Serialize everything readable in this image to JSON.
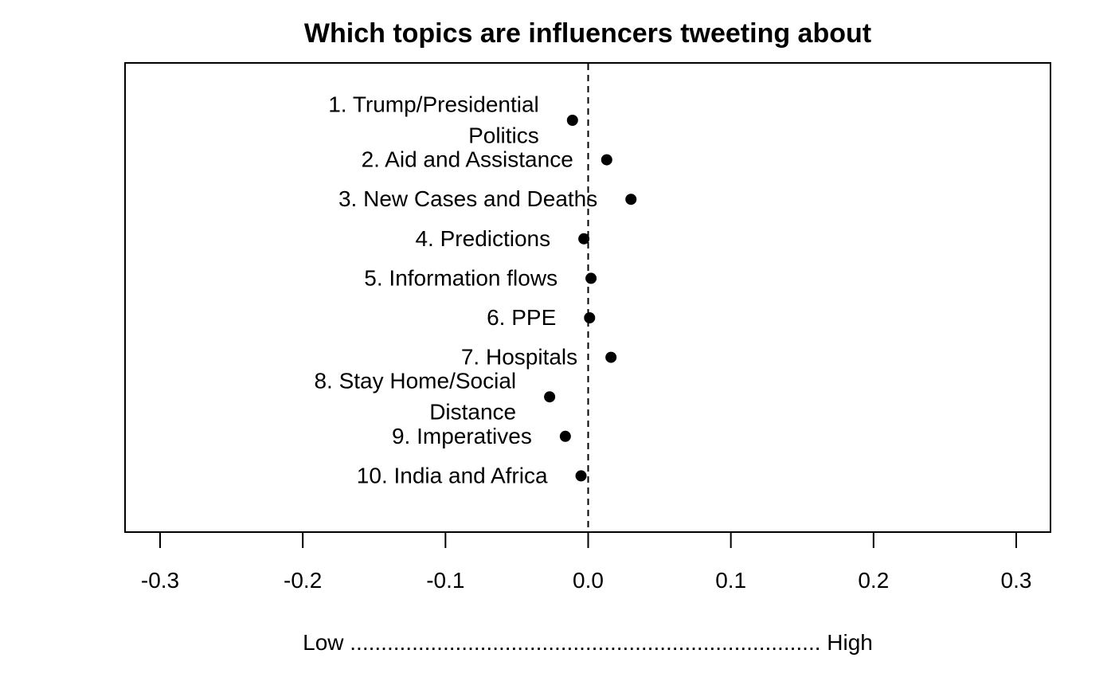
{
  "chart_data": {
    "type": "scatter",
    "title": "Which topics are influencers tweeting about",
    "xlabel": "Low ............................................................................ High",
    "xlim": [
      -0.32,
      0.325
    ],
    "xticks": [
      -0.3,
      -0.2,
      -0.1,
      0.0,
      0.1,
      0.2,
      0.3
    ],
    "xtick_labels": [
      "-0.3",
      "-0.2",
      "-0.1",
      "0.0",
      "0.1",
      "0.2",
      "0.3"
    ],
    "reference_line_x": 0.0,
    "grid": false,
    "points": [
      {
        "label": [
          "1. Trump/Presidential",
          "Politics"
        ],
        "x": -0.011
      },
      {
        "label": [
          "2. Aid and Assistance"
        ],
        "x": 0.013
      },
      {
        "label": [
          "3. New Cases and Deaths"
        ],
        "x": 0.03
      },
      {
        "label": [
          "4. Predictions"
        ],
        "x": -0.003
      },
      {
        "label": [
          "5. Information flows"
        ],
        "x": 0.002
      },
      {
        "label": [
          "6. PPE"
        ],
        "x": 0.001
      },
      {
        "label": [
          "7. Hospitals"
        ],
        "x": 0.016
      },
      {
        "label": [
          "8. Stay Home/Social",
          "Distance"
        ],
        "x": -0.027
      },
      {
        "label": [
          "9. Imperatives"
        ],
        "x": -0.016
      },
      {
        "label": [
          "10. India and Africa"
        ],
        "x": -0.005
      }
    ]
  }
}
